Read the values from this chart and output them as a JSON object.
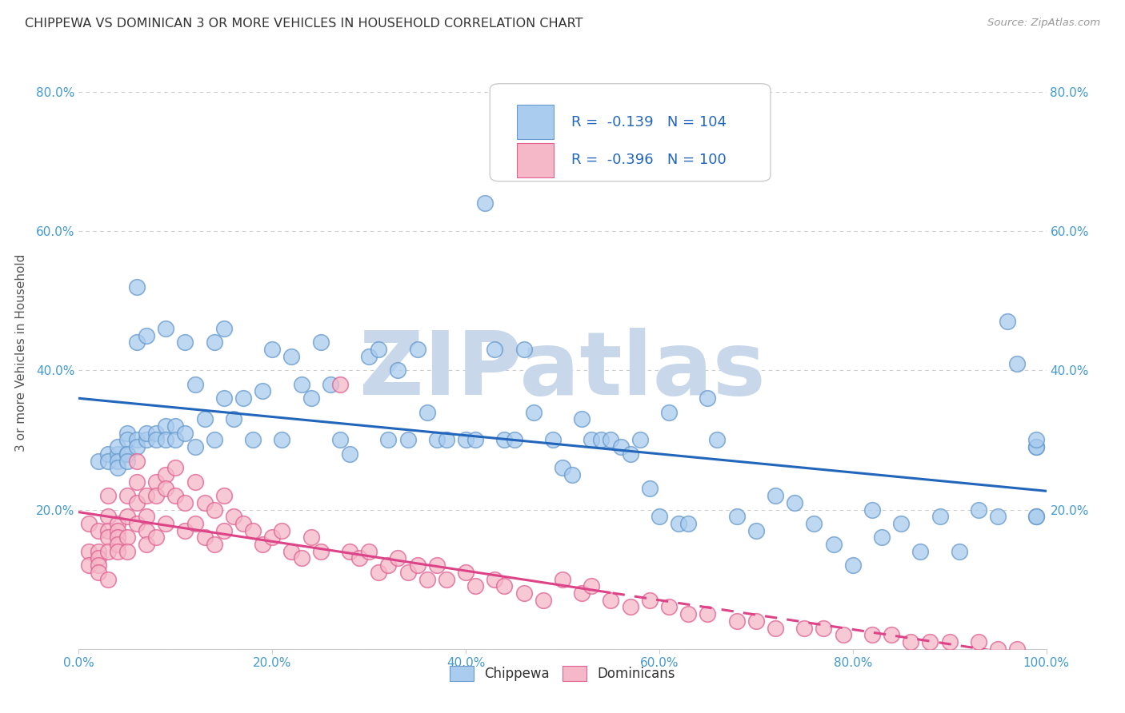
{
  "title": "CHIPPEWA VS DOMINICAN 3 OR MORE VEHICLES IN HOUSEHOLD CORRELATION CHART",
  "source": "Source: ZipAtlas.com",
  "ylabel": "3 or more Vehicles in Household",
  "xlabel": "",
  "xlim": [
    0.0,
    1.0
  ],
  "ylim": [
    0.0,
    0.85
  ],
  "xticks": [
    0.0,
    0.2,
    0.4,
    0.6,
    0.8,
    1.0
  ],
  "xticklabels": [
    "0.0%",
    "20.0%",
    "40.0%",
    "60.0%",
    "80.0%",
    "100.0%"
  ],
  "yticks": [
    0.0,
    0.2,
    0.4,
    0.6,
    0.8
  ],
  "yticklabels": [
    "",
    "20.0%",
    "40.0%",
    "60.0%",
    "80.0%"
  ],
  "chippewa_color": "#aaccee",
  "chippewa_edge_color": "#6699cc",
  "dominican_color": "#f5b8c8",
  "dominican_edge_color": "#e06090",
  "chippewa_line_color": "#2266bb",
  "dominican_line_color": "#dd4488",
  "chippewa_R": -0.139,
  "chippewa_N": 104,
  "dominican_R": -0.396,
  "dominican_N": 100,
  "legend_color": "#2266bb",
  "watermark": "ZIPatlas",
  "watermark_color": "#c8d8ea",
  "background_color": "#ffffff",
  "grid_color": "#cccccc",
  "title_color": "#333333",
  "axis_label_color": "#555555",
  "tick_color": "#4499cc",
  "chippewa_x": [
    0.02,
    0.03,
    0.03,
    0.04,
    0.04,
    0.04,
    0.04,
    0.05,
    0.05,
    0.05,
    0.05,
    0.05,
    0.06,
    0.06,
    0.06,
    0.06,
    0.07,
    0.07,
    0.07,
    0.08,
    0.08,
    0.09,
    0.09,
    0.09,
    0.1,
    0.1,
    0.11,
    0.11,
    0.12,
    0.12,
    0.13,
    0.14,
    0.14,
    0.15,
    0.15,
    0.16,
    0.17,
    0.18,
    0.19,
    0.2,
    0.21,
    0.22,
    0.23,
    0.24,
    0.25,
    0.26,
    0.27,
    0.28,
    0.3,
    0.31,
    0.32,
    0.33,
    0.34,
    0.35,
    0.36,
    0.37,
    0.38,
    0.4,
    0.41,
    0.42,
    0.43,
    0.44,
    0.45,
    0.46,
    0.47,
    0.49,
    0.5,
    0.51,
    0.52,
    0.53,
    0.54,
    0.55,
    0.56,
    0.57,
    0.58,
    0.59,
    0.6,
    0.61,
    0.62,
    0.63,
    0.65,
    0.66,
    0.68,
    0.7,
    0.72,
    0.74,
    0.76,
    0.78,
    0.8,
    0.82,
    0.83,
    0.85,
    0.87,
    0.89,
    0.91,
    0.93,
    0.95,
    0.96,
    0.97,
    0.99,
    0.99,
    0.99,
    0.99,
    0.99
  ],
  "chippewa_y": [
    0.27,
    0.28,
    0.27,
    0.28,
    0.29,
    0.27,
    0.26,
    0.28,
    0.31,
    0.3,
    0.28,
    0.27,
    0.3,
    0.52,
    0.44,
    0.29,
    0.3,
    0.45,
    0.31,
    0.31,
    0.3,
    0.46,
    0.32,
    0.3,
    0.32,
    0.3,
    0.44,
    0.31,
    0.38,
    0.29,
    0.33,
    0.44,
    0.3,
    0.46,
    0.36,
    0.33,
    0.36,
    0.3,
    0.37,
    0.43,
    0.3,
    0.42,
    0.38,
    0.36,
    0.44,
    0.38,
    0.3,
    0.28,
    0.42,
    0.43,
    0.3,
    0.4,
    0.3,
    0.43,
    0.34,
    0.3,
    0.3,
    0.3,
    0.3,
    0.64,
    0.43,
    0.3,
    0.3,
    0.43,
    0.34,
    0.3,
    0.26,
    0.25,
    0.33,
    0.3,
    0.3,
    0.3,
    0.29,
    0.28,
    0.3,
    0.23,
    0.19,
    0.34,
    0.18,
    0.18,
    0.36,
    0.3,
    0.19,
    0.17,
    0.22,
    0.21,
    0.18,
    0.15,
    0.12,
    0.2,
    0.16,
    0.18,
    0.14,
    0.19,
    0.14,
    0.2,
    0.19,
    0.47,
    0.41,
    0.29,
    0.29,
    0.3,
    0.19,
    0.19
  ],
  "dominican_x": [
    0.01,
    0.01,
    0.01,
    0.02,
    0.02,
    0.02,
    0.02,
    0.02,
    0.03,
    0.03,
    0.03,
    0.03,
    0.03,
    0.03,
    0.04,
    0.04,
    0.04,
    0.04,
    0.04,
    0.05,
    0.05,
    0.05,
    0.05,
    0.06,
    0.06,
    0.06,
    0.06,
    0.07,
    0.07,
    0.07,
    0.07,
    0.08,
    0.08,
    0.08,
    0.09,
    0.09,
    0.09,
    0.1,
    0.1,
    0.11,
    0.11,
    0.12,
    0.12,
    0.13,
    0.13,
    0.14,
    0.14,
    0.15,
    0.15,
    0.16,
    0.17,
    0.18,
    0.19,
    0.2,
    0.21,
    0.22,
    0.23,
    0.24,
    0.25,
    0.27,
    0.28,
    0.29,
    0.3,
    0.31,
    0.32,
    0.33,
    0.34,
    0.35,
    0.36,
    0.37,
    0.38,
    0.4,
    0.41,
    0.43,
    0.44,
    0.46,
    0.48,
    0.5,
    0.52,
    0.53,
    0.55,
    0.57,
    0.59,
    0.61,
    0.63,
    0.65,
    0.68,
    0.7,
    0.72,
    0.75,
    0.77,
    0.79,
    0.82,
    0.84,
    0.86,
    0.88,
    0.9,
    0.93,
    0.95,
    0.97
  ],
  "dominican_y": [
    0.18,
    0.14,
    0.12,
    0.17,
    0.14,
    0.13,
    0.12,
    0.11,
    0.22,
    0.19,
    0.17,
    0.16,
    0.14,
    0.1,
    0.18,
    0.17,
    0.16,
    0.15,
    0.14,
    0.22,
    0.19,
    0.16,
    0.14,
    0.27,
    0.24,
    0.21,
    0.18,
    0.22,
    0.19,
    0.17,
    0.15,
    0.24,
    0.22,
    0.16,
    0.25,
    0.23,
    0.18,
    0.26,
    0.22,
    0.21,
    0.17,
    0.24,
    0.18,
    0.21,
    0.16,
    0.2,
    0.15,
    0.22,
    0.17,
    0.19,
    0.18,
    0.17,
    0.15,
    0.16,
    0.17,
    0.14,
    0.13,
    0.16,
    0.14,
    0.38,
    0.14,
    0.13,
    0.14,
    0.11,
    0.12,
    0.13,
    0.11,
    0.12,
    0.1,
    0.12,
    0.1,
    0.11,
    0.09,
    0.1,
    0.09,
    0.08,
    0.07,
    0.1,
    0.08,
    0.09,
    0.07,
    0.06,
    0.07,
    0.06,
    0.05,
    0.05,
    0.04,
    0.04,
    0.03,
    0.03,
    0.03,
    0.02,
    0.02,
    0.02,
    0.01,
    0.01,
    0.01,
    0.01,
    0.0,
    0.0
  ],
  "dominican_dash_split": 0.55
}
